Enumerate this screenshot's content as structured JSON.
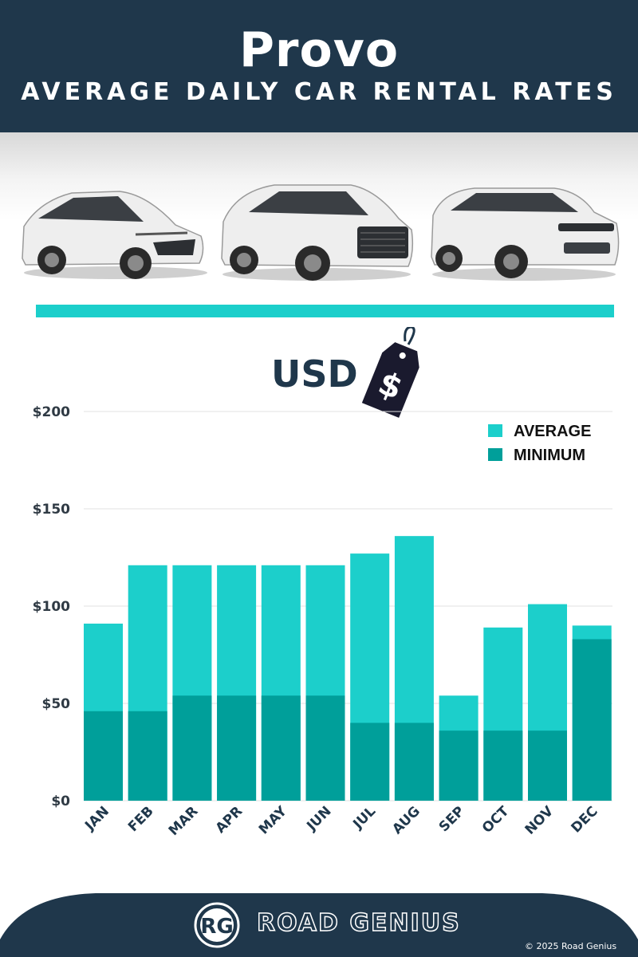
{
  "header": {
    "city": "Provo",
    "subtitle": "AVERAGE DAILY CAR RENTAL RATES"
  },
  "currency": "USD",
  "colors": {
    "header_bg": "#1f374b",
    "average": "#1ccfcb",
    "minimum": "#009f9a",
    "divider": "#1ccfcb"
  },
  "icons": {
    "price_tag": "price-tag-icon",
    "logo": "road-genius-logo"
  },
  "chart_data": {
    "type": "bar",
    "stacked_overlay": true,
    "categories": [
      "JAN",
      "FEB",
      "MAR",
      "APR",
      "MAY",
      "JUN",
      "JUL",
      "AUG",
      "SEP",
      "OCT",
      "NOV",
      "DEC"
    ],
    "series": [
      {
        "name": "AVERAGE",
        "values": [
          91,
          121,
          121,
          121,
          121,
          121,
          127,
          136,
          54,
          89,
          101,
          90
        ]
      },
      {
        "name": "MINIMUM",
        "values": [
          46,
          46,
          54,
          54,
          54,
          54,
          40,
          40,
          36,
          36,
          36,
          83
        ]
      }
    ],
    "yticks": [
      "$0",
      "$50",
      "$100",
      "$150",
      "$200"
    ],
    "ylim": [
      0,
      200
    ],
    "grid": true,
    "legend": "top-right"
  },
  "footer": {
    "brand": "ROAD GENIUS",
    "logo_text": "RG",
    "copyright": "© 2025 Road Genius"
  }
}
